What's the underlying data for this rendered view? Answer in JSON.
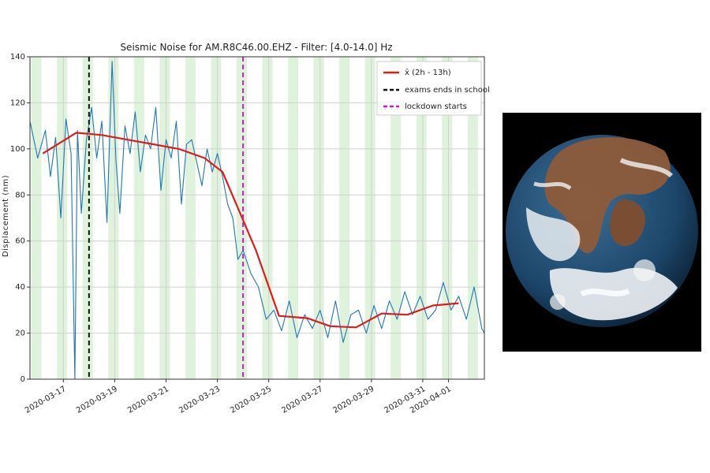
{
  "chart_data": {
    "type": "line",
    "title": "Seismic Noise for AM.R8C46.00.EHZ - Filter: [4.0-14.0] Hz",
    "xlabel": "",
    "ylabel": "Displacement (nm)",
    "ylim": [
      0,
      140
    ],
    "xlim": [
      15.7,
      33.4
    ],
    "yticks": [
      0,
      20,
      40,
      60,
      80,
      100,
      120,
      140
    ],
    "xticks": [
      {
        "x": 17,
        "label": "2020-03-17"
      },
      {
        "x": 19,
        "label": "2020-03-19"
      },
      {
        "x": 21,
        "label": "2020-03-21"
      },
      {
        "x": 23,
        "label": "2020-03-23"
      },
      {
        "x": 25,
        "label": "2020-03-25"
      },
      {
        "x": 27,
        "label": "2020-03-27"
      },
      {
        "x": 29,
        "label": "2020-03-29"
      },
      {
        "x": 31,
        "label": "2020-03-31"
      },
      {
        "x": 32,
        "label": "2020-04-01"
      }
    ],
    "grid": true,
    "legend_position": "top-right",
    "series": [
      {
        "name": "x̄ (2h - 13h)",
        "color": "#e31a1c",
        "style": "solid",
        "x": [
          16.2,
          17.5,
          18.5,
          19.5,
          20.5,
          21.5,
          22.5,
          23.2,
          24.5,
          25.4,
          26.5,
          27.4,
          28.4,
          29.4,
          30.4,
          31.4,
          32.4
        ],
        "y": [
          98,
          107,
          106,
          104,
          102,
          100,
          96,
          90,
          56,
          27.5,
          26.5,
          23,
          22.5,
          28.5,
          28,
          32,
          33
        ]
      },
      {
        "name": "seismic noise",
        "color": "#1f77b4",
        "style": "solid",
        "x": [
          15.7,
          16.0,
          16.3,
          16.5,
          16.7,
          16.9,
          17.1,
          17.3,
          17.45,
          17.55,
          17.7,
          17.9,
          18.1,
          18.3,
          18.5,
          18.7,
          18.9,
          19.05,
          19.2,
          19.4,
          19.6,
          19.8,
          20.0,
          20.2,
          20.4,
          20.6,
          20.8,
          21.0,
          21.2,
          21.4,
          21.6,
          21.8,
          22.0,
          22.2,
          22.4,
          22.6,
          22.8,
          23.0,
          23.2,
          23.4,
          23.6,
          23.8,
          24.0,
          24.3,
          24.6,
          24.9,
          25.2,
          25.5,
          25.8,
          26.1,
          26.4,
          26.7,
          27.0,
          27.3,
          27.6,
          27.9,
          28.2,
          28.5,
          28.8,
          29.1,
          29.4,
          29.7,
          30.0,
          30.3,
          30.6,
          30.9,
          31.2,
          31.5,
          31.8,
          32.1,
          32.4,
          32.7,
          33.0,
          33.3,
          33.4
        ],
        "y": [
          112,
          96,
          108,
          88,
          105,
          70,
          113,
          98,
          0,
          108,
          72,
          104,
          118,
          96,
          112,
          68,
          138,
          95,
          72,
          110,
          98,
          116,
          90,
          106,
          100,
          118,
          82,
          104,
          96,
          112,
          76,
          102,
          104,
          94,
          84,
          100,
          90,
          98,
          88,
          76,
          70,
          52,
          56,
          46,
          40,
          26,
          30,
          21,
          34,
          18,
          28,
          22,
          30,
          18,
          34,
          16,
          28,
          30,
          20,
          32,
          22,
          34,
          26,
          38,
          28,
          36,
          26,
          30,
          42,
          30,
          36,
          26,
          40,
          22,
          20
        ]
      }
    ],
    "markers": [
      {
        "name": "exams ends in school",
        "x": 18.0,
        "color": "#111111",
        "style": "dashed"
      },
      {
        "name": "lockdown starts",
        "x": 24.0,
        "color": "#c020c0",
        "style": "dashed"
      }
    ],
    "shaded_bands": [
      [
        15.75,
        16.15
      ],
      [
        16.75,
        17.15
      ],
      [
        17.75,
        18.15
      ],
      [
        18.75,
        19.15
      ],
      [
        19.75,
        20.15
      ],
      [
        20.75,
        21.15
      ],
      [
        21.75,
        22.15
      ],
      [
        22.75,
        23.15
      ],
      [
        23.75,
        24.15
      ],
      [
        24.75,
        25.15
      ],
      [
        25.75,
        26.15
      ],
      [
        26.75,
        27.15
      ],
      [
        27.75,
        28.15
      ],
      [
        28.75,
        29.15
      ],
      [
        29.75,
        30.15
      ],
      [
        30.75,
        31.15
      ],
      [
        31.75,
        32.15
      ],
      [
        32.75,
        33.15
      ]
    ],
    "legend": [
      "x̄ (2h - 13h)",
      "exams ends in school",
      "lockdown starts"
    ]
  },
  "image": {
    "name": "earth-globe",
    "colors": {
      "space": "#000000",
      "ocean": "#1f4a6e",
      "land": "#8a5a3a",
      "cloud": "#f2f2f2"
    }
  }
}
